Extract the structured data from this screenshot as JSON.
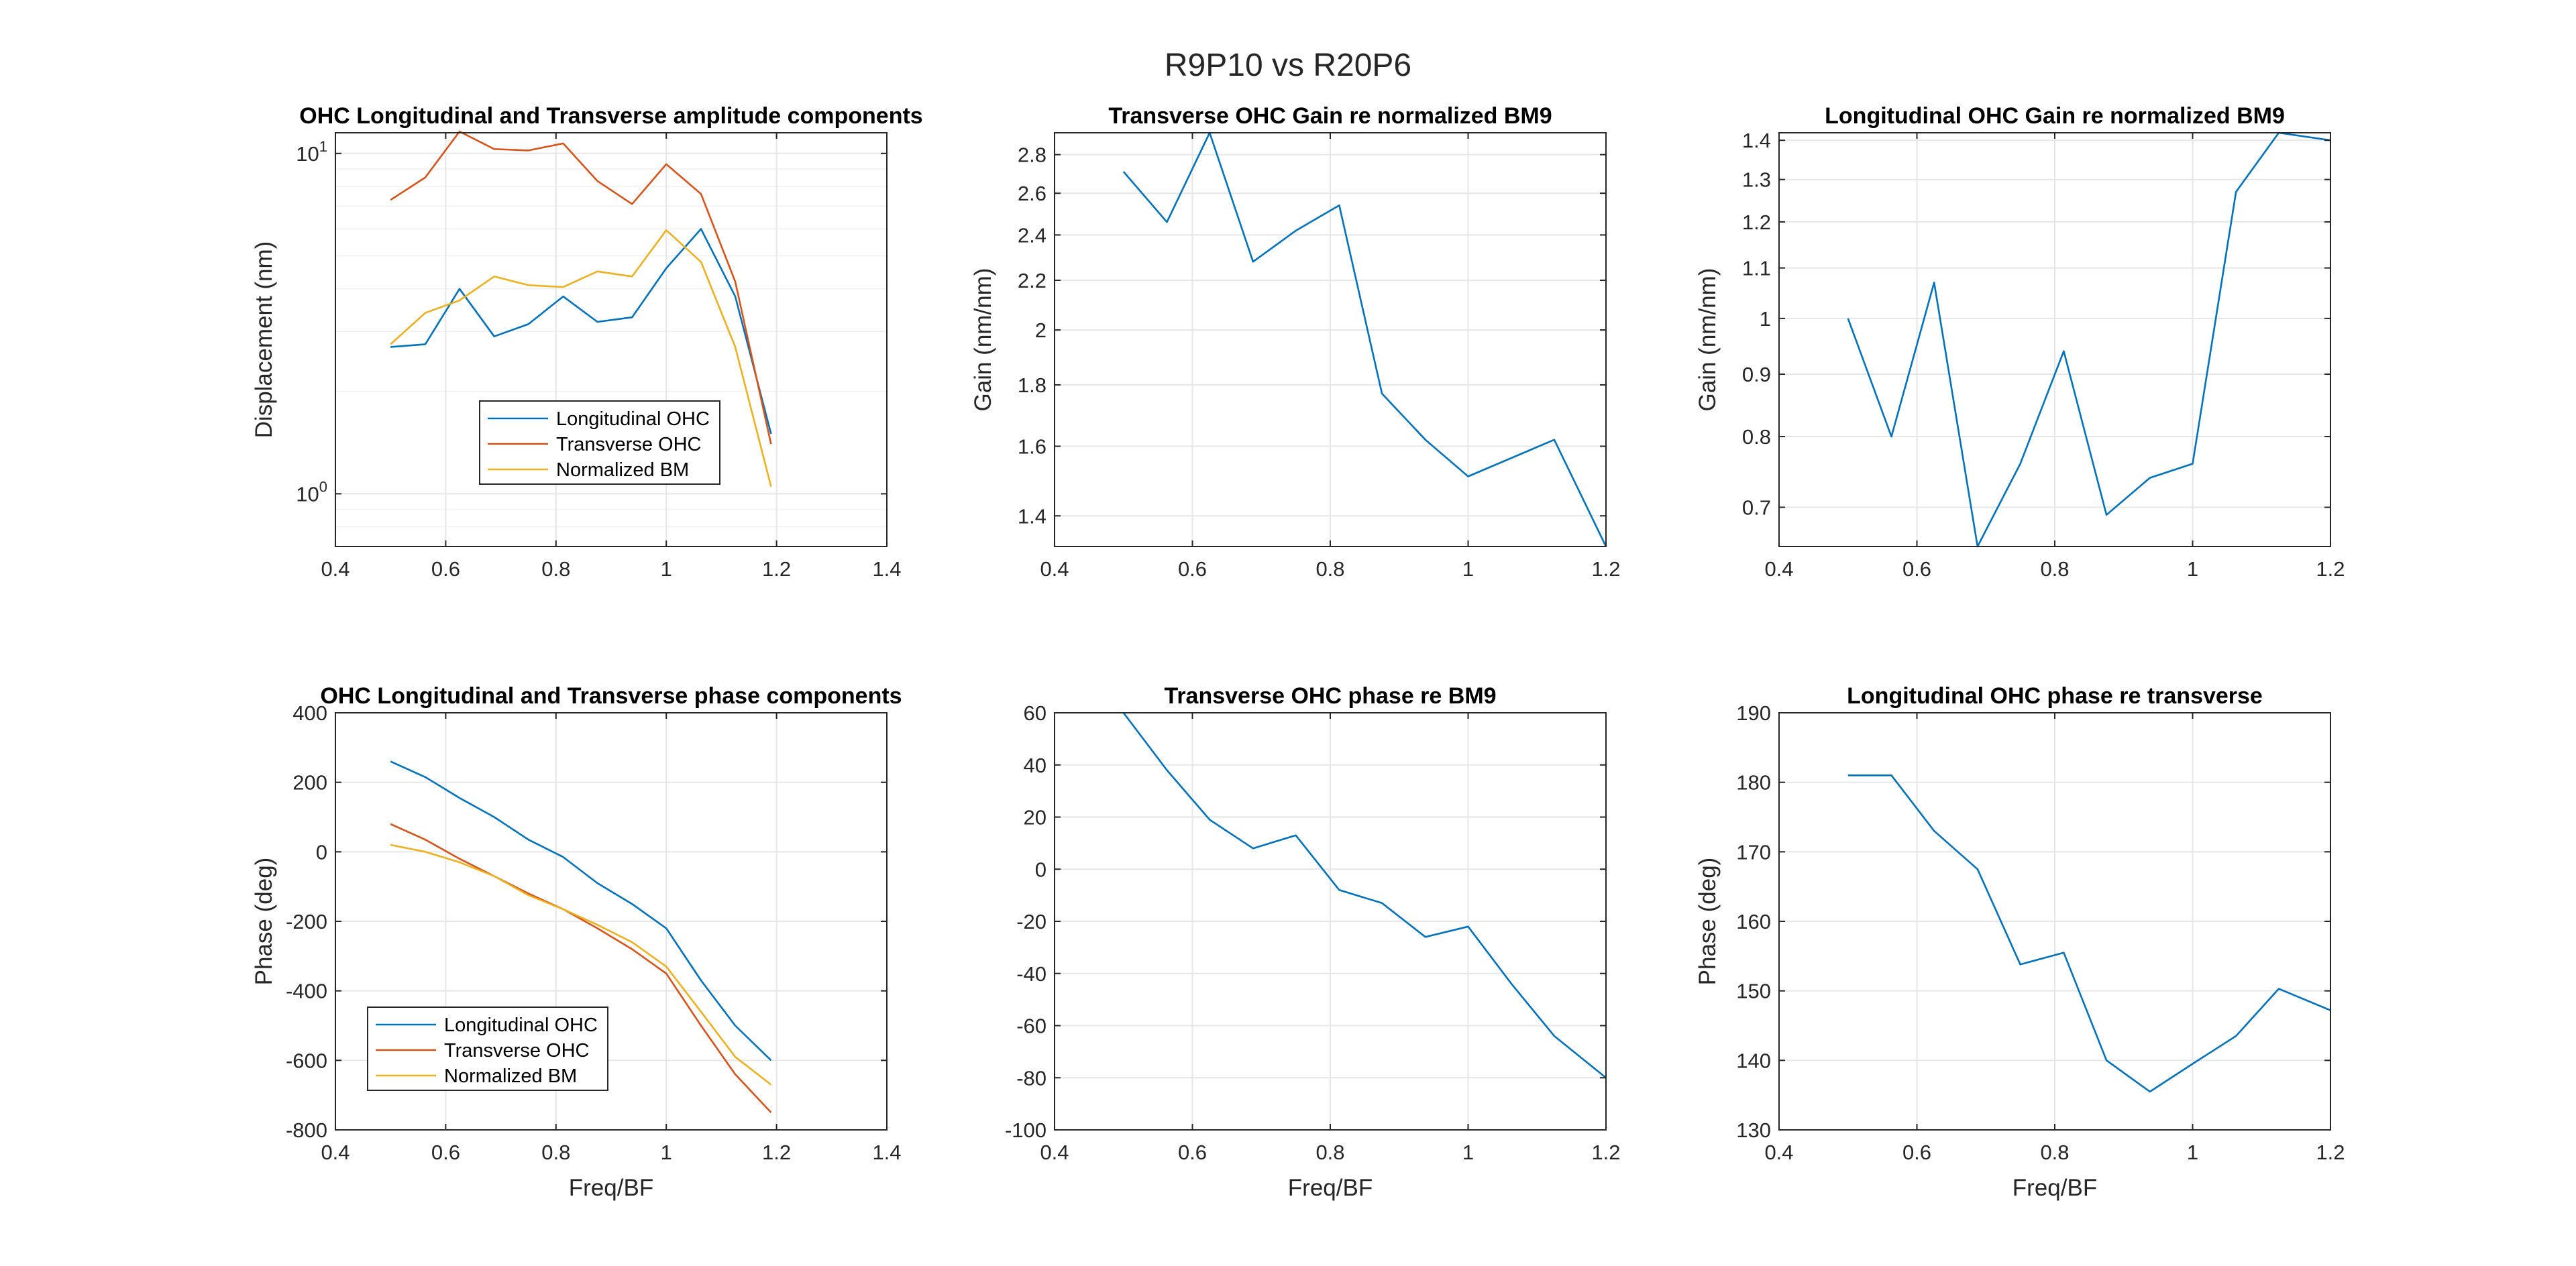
{
  "suptitle": "R9P10 vs R20P6",
  "colors": {
    "blue": "#0072BD",
    "orange": "#D95319",
    "yellow": "#EDB120",
    "grid": "#e6e6e6",
    "axis": "#262626"
  },
  "chart_data": [
    {
      "type": "line",
      "title": "OHC Longitudinal and Transverse amplitude components",
      "xlabel": "",
      "ylabel": "Displacement (nm)",
      "yscale": "log",
      "xlim": [
        0.4,
        1.4
      ],
      "ylim": [
        0.7,
        11.5
      ],
      "xticks": [
        0.4,
        0.6,
        0.8,
        1,
        1.2,
        1.4
      ],
      "yticks": [
        {
          "v": 1,
          "base": "10",
          "exp": "0"
        },
        {
          "v": 10,
          "base": "10",
          "exp": "1"
        }
      ],
      "legend": "lower-center",
      "x": [
        0.5,
        0.563,
        0.625,
        0.688,
        0.75,
        0.813,
        0.875,
        0.938,
        1.0,
        1.063,
        1.125,
        1.19
      ],
      "series": [
        {
          "name": "Longitudinal OHC",
          "color": "#0072BD",
          "values": [
            2.7,
            2.75,
            4.0,
            2.9,
            3.15,
            3.8,
            3.2,
            3.3,
            4.6,
            6.0,
            3.8,
            1.5
          ]
        },
        {
          "name": "Transverse OHC",
          "color": "#D95319",
          "values": [
            7.3,
            8.5,
            11.6,
            10.3,
            10.2,
            10.7,
            8.3,
            7.1,
            9.3,
            7.6,
            4.2,
            1.4
          ]
        },
        {
          "name": "Normalized BM",
          "color": "#EDB120",
          "values": [
            2.75,
            3.4,
            3.7,
            4.35,
            4.1,
            4.05,
            4.5,
            4.35,
            5.95,
            4.8,
            2.7,
            1.05
          ]
        }
      ]
    },
    {
      "type": "line",
      "title": "Transverse OHC Gain re normalized BM9",
      "xlabel": "",
      "ylabel": "Gain (nm/nm)",
      "yscale": "log",
      "xlim": [
        0.4,
        1.2
      ],
      "ylim": [
        1.32,
        2.92
      ],
      "xticks": [
        0.4,
        0.6,
        0.8,
        1,
        1.2
      ],
      "yticks": [
        {
          "v": 1.4,
          "label": "1.4"
        },
        {
          "v": 1.6,
          "label": "1.6"
        },
        {
          "v": 1.8,
          "label": "1.8"
        },
        {
          "v": 2,
          "label": "2"
        },
        {
          "v": 2.2,
          "label": "2.2"
        },
        {
          "v": 2.4,
          "label": "2.4"
        },
        {
          "v": 2.6,
          "label": "2.6"
        },
        {
          "v": 2.8,
          "label": "2.8"
        }
      ],
      "x": [
        0.5,
        0.563,
        0.625,
        0.688,
        0.75,
        0.813,
        0.875,
        0.938,
        1.0,
        1.125,
        1.2
      ],
      "series": [
        {
          "color": "#0072BD",
          "values": [
            2.71,
            2.46,
            2.92,
            2.28,
            2.42,
            2.54,
            1.77,
            1.62,
            1.51,
            1.62,
            1.32
          ]
        }
      ]
    },
    {
      "type": "line",
      "title": "Longitudinal OHC Gain re normalized BM9",
      "xlabel": "",
      "ylabel": "Gain (nm/nm)",
      "yscale": "log",
      "xlim": [
        0.4,
        1.2
      ],
      "ylim": [
        0.65,
        1.42
      ],
      "xticks": [
        0.4,
        0.6,
        0.8,
        1,
        1.2
      ],
      "yticks": [
        {
          "v": 0.7,
          "label": "0.7"
        },
        {
          "v": 0.8,
          "label": "0.8"
        },
        {
          "v": 0.9,
          "label": "0.9"
        },
        {
          "v": 1,
          "label": "1"
        },
        {
          "v": 1.1,
          "label": "1.1"
        },
        {
          "v": 1.2,
          "label": "1.2"
        },
        {
          "v": 1.3,
          "label": "1.3"
        },
        {
          "v": 1.4,
          "label": "1.4"
        }
      ],
      "x": [
        0.5,
        0.563,
        0.625,
        0.688,
        0.75,
        0.813,
        0.875,
        0.938,
        1.0,
        1.063,
        1.125,
        1.2
      ],
      "series": [
        {
          "color": "#0072BD",
          "values": [
            1.0,
            0.8,
            1.07,
            0.65,
            0.76,
            0.94,
            0.69,
            0.74,
            0.76,
            1.27,
            1.42,
            1.4
          ]
        }
      ]
    },
    {
      "type": "line",
      "title": "OHC Longitudinal and Transverse phase components",
      "xlabel": "Freq/BF",
      "ylabel": "Phase (deg)",
      "yscale": "linear",
      "xlim": [
        0.4,
        1.4
      ],
      "ylim": [
        -800,
        400
      ],
      "xticks": [
        0.4,
        0.6,
        0.8,
        1,
        1.2,
        1.4
      ],
      "yticks": [
        {
          "v": -800,
          "label": "-800"
        },
        {
          "v": -600,
          "label": "-600"
        },
        {
          "v": -400,
          "label": "-400"
        },
        {
          "v": -200,
          "label": "-200"
        },
        {
          "v": 0,
          "label": "0"
        },
        {
          "v": 200,
          "label": "200"
        },
        {
          "v": 400,
          "label": "400"
        }
      ],
      "legend": "lower-left",
      "x": [
        0.5,
        0.563,
        0.625,
        0.688,
        0.75,
        0.813,
        0.875,
        0.938,
        1.0,
        1.063,
        1.125,
        1.19
      ],
      "series": [
        {
          "name": "Longitudinal OHC",
          "color": "#0072BD",
          "values": [
            260,
            215,
            155,
            100,
            35,
            -15,
            -90,
            -150,
            -220,
            -370,
            -500,
            -600
          ]
        },
        {
          "name": "Transverse OHC",
          "color": "#D95319",
          "values": [
            80,
            35,
            -20,
            -70,
            -120,
            -165,
            -220,
            -280,
            -350,
            -500,
            -640,
            -750
          ]
        },
        {
          "name": "Normalized BM",
          "color": "#EDB120",
          "values": [
            20,
            0,
            -30,
            -70,
            -125,
            -165,
            -210,
            -260,
            -330,
            -460,
            -590,
            -670
          ]
        }
      ]
    },
    {
      "type": "line",
      "title": "Transverse OHC phase re BM9",
      "xlabel": "Freq/BF",
      "ylabel": "",
      "yscale": "linear",
      "xlim": [
        0.4,
        1.2
      ],
      "ylim": [
        -100,
        60
      ],
      "xticks": [
        0.4,
        0.6,
        0.8,
        1,
        1.2
      ],
      "yticks": [
        {
          "v": -100,
          "label": "-100"
        },
        {
          "v": -80,
          "label": "-80"
        },
        {
          "v": -60,
          "label": "-60"
        },
        {
          "v": -40,
          "label": "-40"
        },
        {
          "v": -20,
          "label": "-20"
        },
        {
          "v": 0,
          "label": "0"
        },
        {
          "v": 20,
          "label": "20"
        },
        {
          "v": 40,
          "label": "40"
        },
        {
          "v": 60,
          "label": "60"
        }
      ],
      "x": [
        0.5,
        0.563,
        0.625,
        0.688,
        0.75,
        0.813,
        0.875,
        0.938,
        1.0,
        1.063,
        1.125,
        1.2
      ],
      "series": [
        {
          "color": "#0072BD",
          "values": [
            60,
            38,
            19,
            8,
            13,
            -8,
            -13,
            -26,
            -22,
            -44,
            -64,
            -80
          ]
        }
      ]
    },
    {
      "type": "line",
      "title": "Longitudinal OHC phase re transverse",
      "xlabel": "Freq/BF",
      "ylabel": "Phase (deg)",
      "yscale": "linear",
      "xlim": [
        0.4,
        1.2
      ],
      "ylim": [
        130,
        190
      ],
      "xticks": [
        0.4,
        0.6,
        0.8,
        1,
        1.2
      ],
      "yticks": [
        {
          "v": 130,
          "label": "130"
        },
        {
          "v": 140,
          "label": "140"
        },
        {
          "v": 150,
          "label": "150"
        },
        {
          "v": 160,
          "label": "160"
        },
        {
          "v": 170,
          "label": "170"
        },
        {
          "v": 180,
          "label": "180"
        },
        {
          "v": 190,
          "label": "190"
        }
      ],
      "x": [
        0.5,
        0.563,
        0.625,
        0.688,
        0.75,
        0.813,
        0.875,
        0.938,
        1.0,
        1.063,
        1.125,
        1.2
      ],
      "series": [
        {
          "color": "#0072BD",
          "values": [
            181,
            181,
            173,
            167.5,
            153.8,
            155.5,
            140,
            135.5,
            139.5,
            143.5,
            150.3,
            147.2
          ]
        }
      ]
    }
  ]
}
